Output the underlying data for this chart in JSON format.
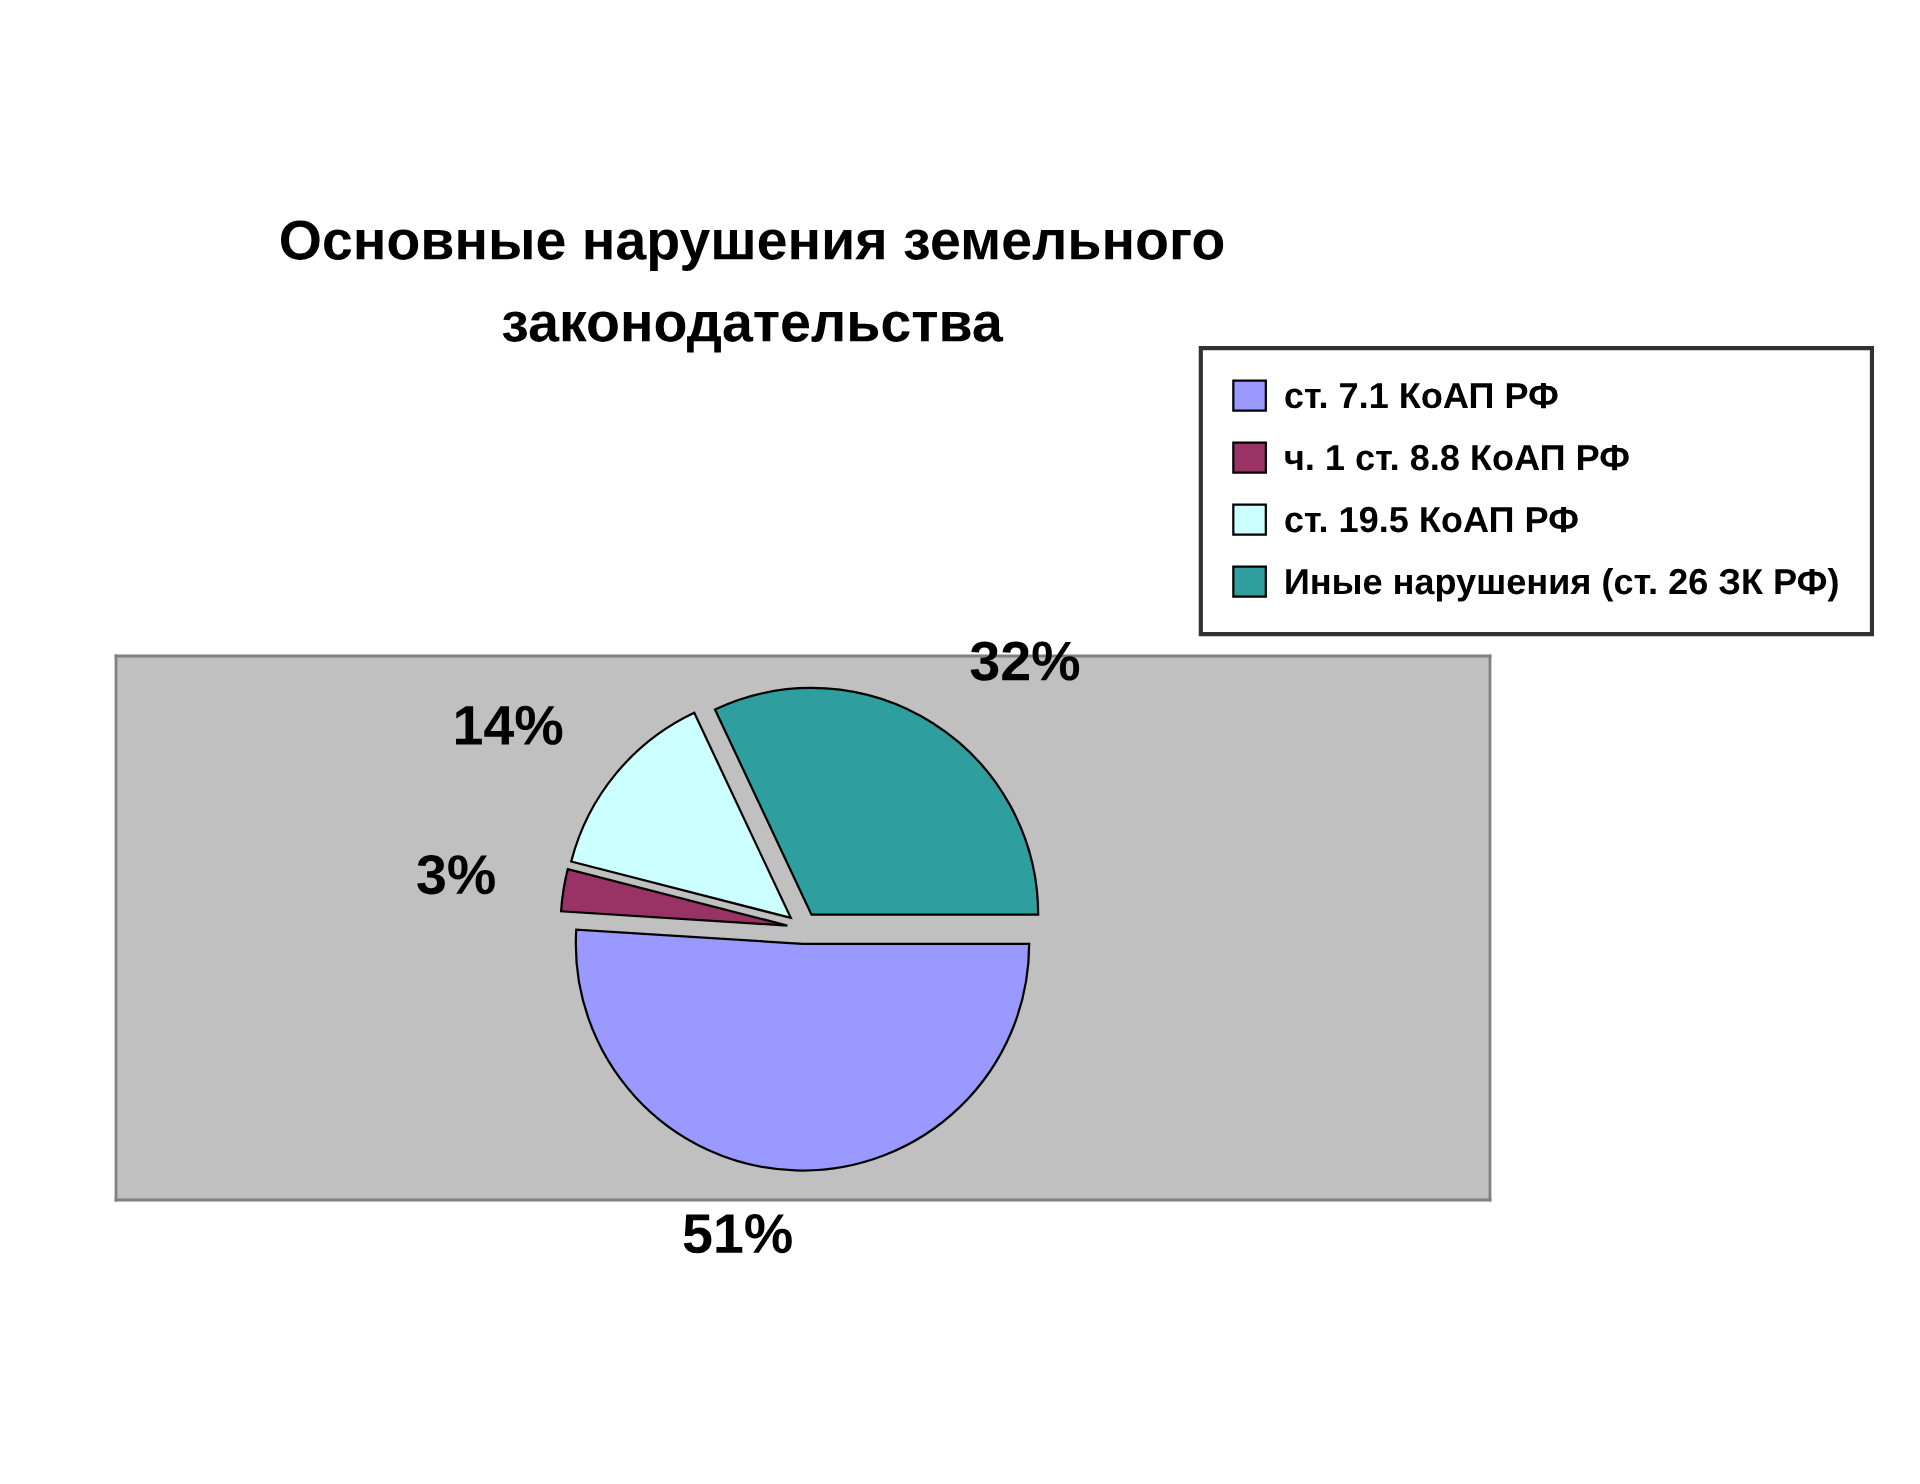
{
  "chart_data": {
    "type": "pie",
    "title": "Основные нарушения земельного\nзаконодательства",
    "categories": [
      "ст. 7.1 КоАП РФ",
      "ч. 1 ст. 8.8 КоАП РФ",
      "ст. 19.5 КоАП РФ",
      "Иные нарушения (ст. 26 ЗК РФ)"
    ],
    "values": [
      51,
      3,
      14,
      32
    ],
    "colors": [
      "#9999ff",
      "#993366",
      "#ccffff",
      "#2e9e9e"
    ],
    "value_labels": [
      "51%",
      "3%",
      "14%",
      "32%"
    ],
    "legend": "top right"
  }
}
